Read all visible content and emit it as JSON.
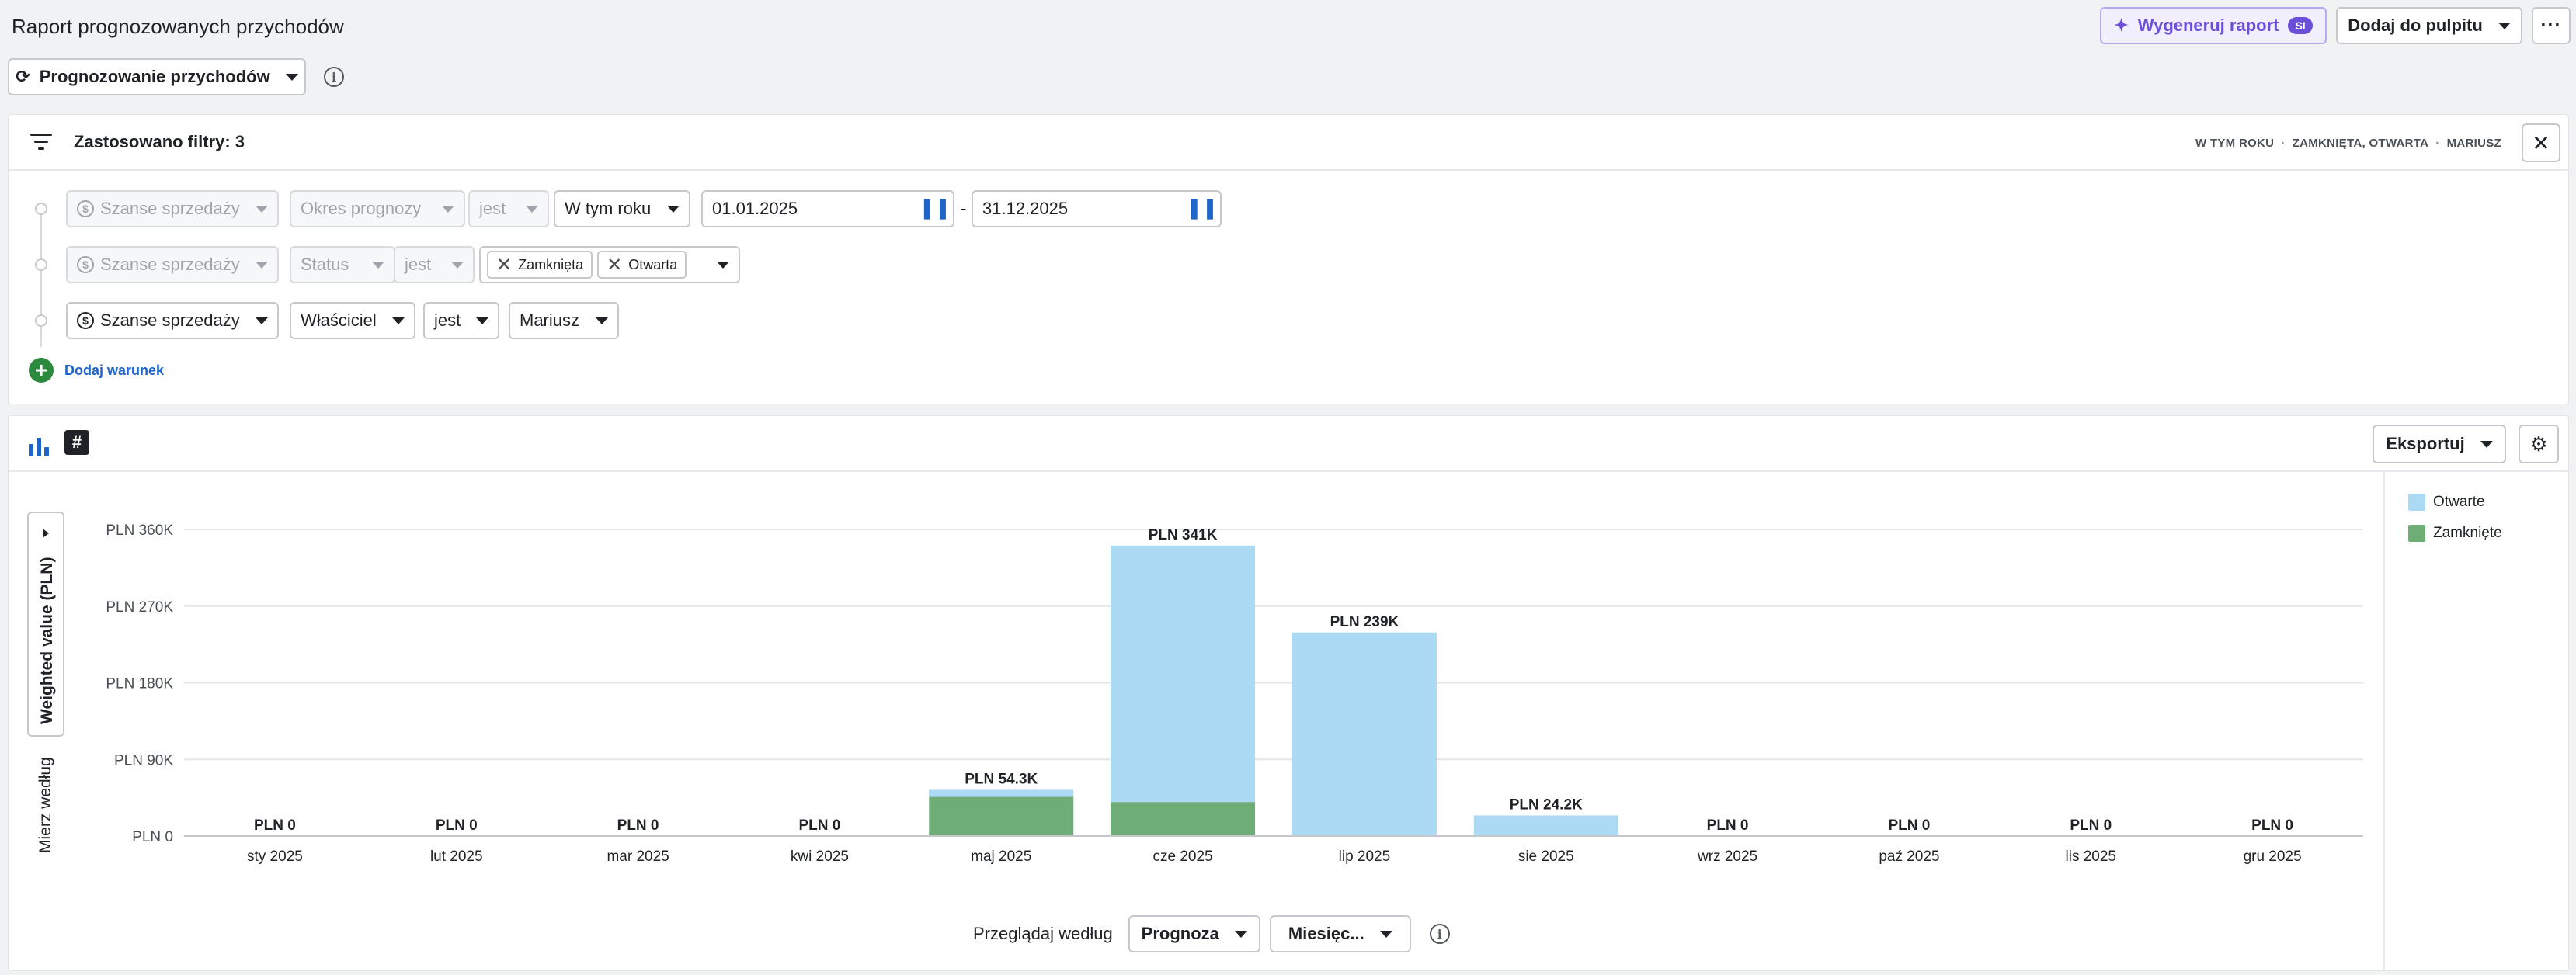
{
  "header": {
    "title": "Raport prognozowanych przychodów",
    "ai_button": {
      "label": "Wygeneruj raport",
      "badge": "SI"
    },
    "dashboard_button": "Dodaj do pulpitu",
    "more_button": "···"
  },
  "report_type": {
    "label": "Prognozowanie przychodów",
    "info": "i"
  },
  "filters": {
    "title": "Zastosowano filtry: 3",
    "summary": [
      "W TYM ROKU",
      "ZAMKNIĘTA, OTWARTA",
      "MARIUSZ"
    ],
    "rows": [
      {
        "entity": "Szanse sprzedaży",
        "field": "Okres prognozy",
        "operator": "jest",
        "value": "W tym roku",
        "from": "01.01.2025",
        "to": "31.12.2025",
        "separator": "-"
      },
      {
        "entity": "Szanse sprzedaży",
        "field": "Status",
        "operator": "jest",
        "tags": [
          "Zamknięta",
          "Otwarta"
        ]
      },
      {
        "entity": "Szanse sprzedaży",
        "field": "Właściciel",
        "operator": "jest",
        "value": "Mariusz"
      }
    ],
    "add_condition": "Dodaj warunek"
  },
  "chart_toolbar": {
    "export_label": "Eksportuj",
    "hash_label": "#"
  },
  "axis": {
    "measure_by": "Mierz według",
    "measure_value": "Weighted value (PLN)"
  },
  "browse": {
    "label": "Przeglądaj według",
    "group": "Prognoza",
    "period": "Miesięc..."
  },
  "colors": {
    "open": "#acd9f4",
    "closed": "#6fad77",
    "accent": "#1f64c8",
    "ai": "#6b4fd8"
  },
  "chart_data": {
    "type": "bar",
    "stacked": true,
    "categories": [
      "sty 2025",
      "lut 2025",
      "mar 2025",
      "kwi 2025",
      "maj 2025",
      "cze 2025",
      "lip 2025",
      "sie 2025",
      "wrz 2025",
      "paź 2025",
      "lis 2025",
      "gru 2025"
    ],
    "series": [
      {
        "name": "Zamknięte",
        "values": [
          0,
          0,
          0,
          0,
          46,
          40,
          0,
          0,
          0,
          0,
          0,
          0
        ]
      },
      {
        "name": "Otwarte",
        "values": [
          0,
          0,
          0,
          0,
          8.3,
          301,
          239,
          24.2,
          0,
          0,
          0,
          0
        ]
      }
    ],
    "totals_labels": [
      "PLN 0",
      "PLN 0",
      "PLN 0",
      "PLN 0",
      "PLN 54.3K",
      "PLN 341K",
      "PLN 239K",
      "PLN 24.2K",
      "PLN 0",
      "PLN 0",
      "PLN 0",
      "PLN 0"
    ],
    "y_ticks": [
      "PLN 0",
      "PLN 90K",
      "PLN 180K",
      "PLN 270K",
      "PLN 360K"
    ],
    "y_tick_values": [
      0,
      90,
      180,
      270,
      360
    ],
    "ylim": [
      0,
      360
    ],
    "ylabel": "Weighted value (PLN)",
    "legend": [
      "Otwarte",
      "Zamknięte"
    ],
    "legend_position": "right"
  }
}
